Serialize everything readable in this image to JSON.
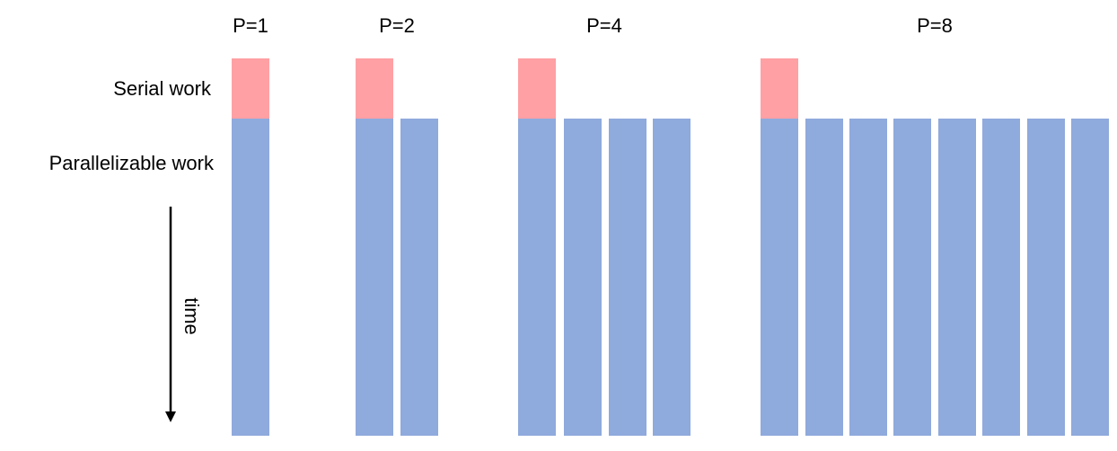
{
  "labels": {
    "serial": "Serial work",
    "parallel": "Parallelizable work",
    "time": "time"
  },
  "groups": [
    {
      "title": "P=1"
    },
    {
      "title": "P=2"
    },
    {
      "title": "P=4"
    },
    {
      "title": "P=8"
    }
  ]
}
